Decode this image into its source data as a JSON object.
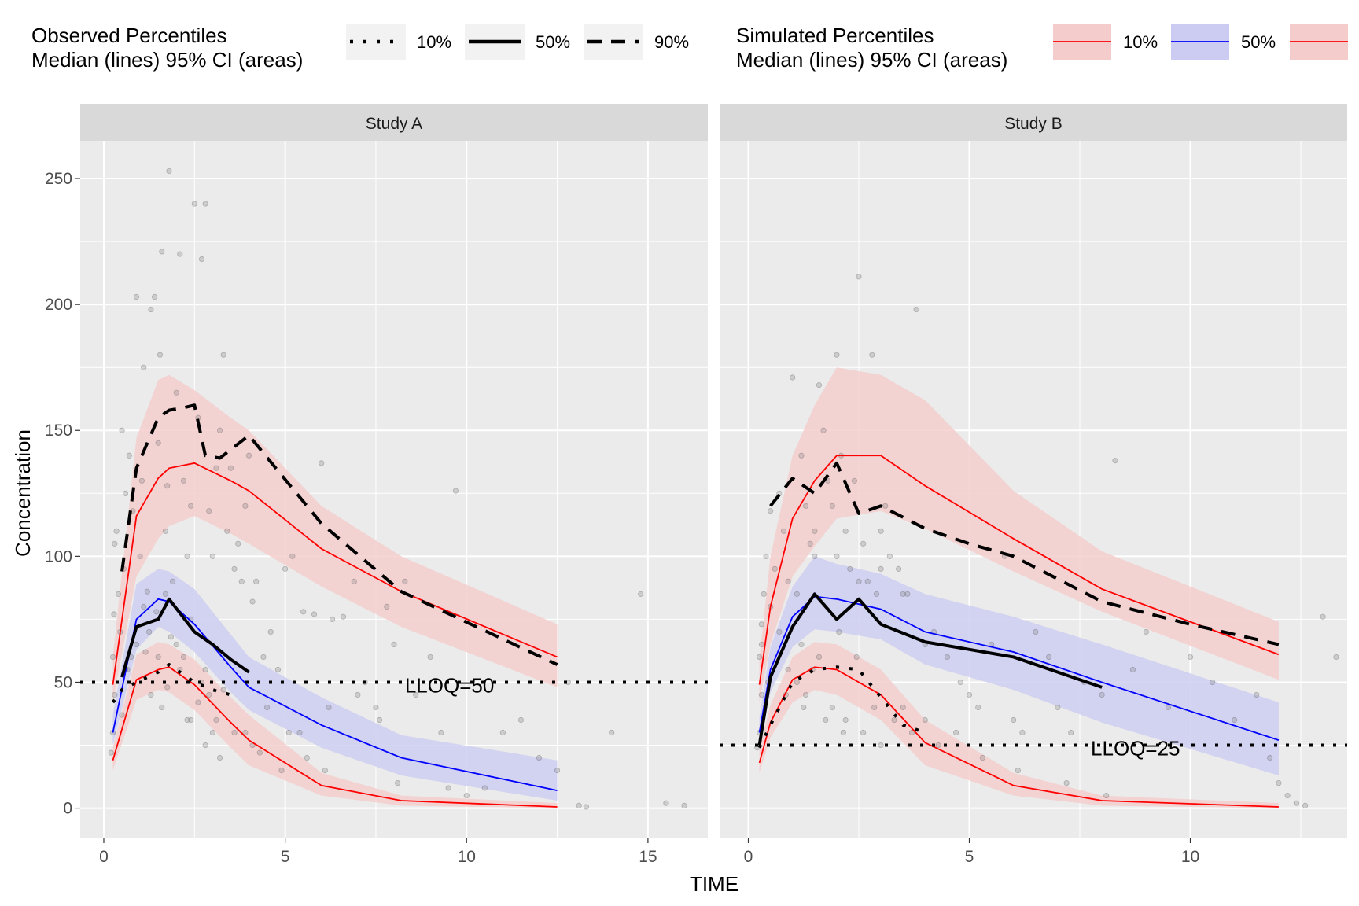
{
  "legend": {
    "observed": {
      "title_line1": "Observed Percentiles",
      "title_line2": "Median (lines) 95% CI (areas)",
      "items": [
        {
          "label": "10%",
          "linetype": "dotted"
        },
        {
          "label": "50%",
          "linetype": "solid"
        },
        {
          "label": "90%",
          "linetype": "dashed"
        }
      ]
    },
    "simulated": {
      "title_line1": "Simulated Percentiles",
      "title_line2": "Median (lines) 95% CI (areas)",
      "items": [
        {
          "label": "10%",
          "color": "#ff0000",
          "fill": "#f4cccc"
        },
        {
          "label": "50%",
          "color": "#0000ff",
          "fill": "#ccccf2"
        },
        {
          "label": "",
          "color": "#ff0000",
          "fill": "#f4cccc"
        }
      ]
    }
  },
  "colors": {
    "panel_bg": "#ebebeb",
    "grid": "#ffffff",
    "strip_bg": "#d9d9d9",
    "sim_outer_line": "#ff0000",
    "sim_outer_fill": "#f4cccc",
    "sim_median_line": "#0000ff",
    "sim_median_fill": "#ccccf2",
    "obs_line": "#000000",
    "point": "#7f7f7f"
  },
  "chart_data": [
    {
      "type": "line",
      "panel": "Study A",
      "xlabel": "TIME",
      "ylabel": "Concentration",
      "xlim": [
        -0.65,
        16.65
      ],
      "ylim": [
        -12,
        265
      ],
      "xticks": [
        0,
        5,
        10,
        15
      ],
      "yticks": [
        0,
        50,
        100,
        150,
        200,
        250
      ],
      "lloq": {
        "value": 50,
        "label": "LLOQ=50",
        "label_x": 8.3,
        "label_y": 46
      },
      "sim_bins": [
        0.25,
        0.9,
        1.5,
        1.8,
        2.5,
        3.5,
        4,
        6,
        8.2,
        12.5
      ],
      "sim_p10": {
        "median": [
          19,
          51,
          55,
          56,
          49,
          34,
          27,
          9,
          3,
          0.5
        ],
        "lo": [
          15,
          43,
          47,
          46,
          39,
          24,
          17,
          5,
          1,
          0
        ],
        "hi": [
          24,
          61,
          66,
          65,
          59,
          44,
          37,
          14,
          5,
          2
        ]
      },
      "sim_p50": {
        "median": [
          30,
          75,
          83,
          82,
          73,
          56,
          48,
          33,
          20,
          7
        ],
        "lo": [
          25,
          63,
          72,
          70,
          62,
          46,
          39,
          24,
          13,
          3
        ],
        "hi": [
          37,
          89,
          95,
          94,
          87,
          69,
          60,
          44,
          29,
          19
        ]
      },
      "sim_p90": {
        "median": [
          49,
          116,
          131,
          135,
          137,
          130,
          126,
          103,
          86,
          60
        ],
        "lo": [
          42,
          92,
          107,
          112,
          116,
          109,
          105,
          88,
          72,
          48
        ],
        "hi": [
          60,
          147,
          170,
          172,
          166,
          155,
          150,
          120,
          100,
          73
        ]
      },
      "obs_p10": {
        "x": [
          0.25,
          0.5,
          0.9,
          1.5,
          1.8,
          2.5,
          3,
          3.5
        ],
        "y": [
          42,
          47,
          50,
          54,
          57,
          50,
          47,
          45
        ]
      },
      "obs_p50": {
        "x": [
          0.5,
          0.9,
          1.5,
          1.8,
          2.5,
          3,
          3.5,
          4
        ],
        "y": [
          52,
          72,
          75,
          83,
          70,
          65,
          59,
          54
        ]
      },
      "obs_p90": {
        "x": [
          0.5,
          0.9,
          1.5,
          1.8,
          2.2,
          2.5,
          2.8,
          3.2,
          4,
          6,
          8.2,
          12.5
        ],
        "y": [
          94,
          135,
          155,
          158,
          159,
          160,
          140,
          139,
          148,
          113,
          86,
          57
        ]
      },
      "points": {
        "x": [
          0.2,
          0.25,
          0.3,
          0.25,
          0.28,
          0.3,
          0.35,
          0.4,
          0.45,
          0.5,
          0.55,
          0.6,
          0.7,
          0.8,
          0.9,
          1,
          1.05,
          1.1,
          1.2,
          1.3,
          1.4,
          1.5,
          1.55,
          1.6,
          1.7,
          1.75,
          1.8,
          1.9,
          2,
          2.1,
          2.2,
          2.3,
          2.4,
          2.5,
          2.6,
          2.7,
          2.8,
          2.9,
          3,
          3.1,
          3.2,
          3.3,
          3.4,
          3.5,
          3.6,
          3.7,
          3.8,
          3.9,
          4,
          4.1,
          4.2,
          4.4,
          4.6,
          4.8,
          5,
          5.2,
          5.5,
          5.8,
          6,
          6.3,
          6.6,
          6.9,
          7.2,
          7.5,
          7.8,
          8,
          8.3,
          8.6,
          9,
          9.3,
          9.7,
          10,
          10.5,
          11,
          11.5,
          12,
          12.5,
          12.8,
          13.1,
          13.3,
          14,
          14.8,
          15.5,
          16,
          0.9,
          1.1,
          1.3,
          1.6,
          1.85,
          2.1,
          2.4,
          2.7,
          3,
          3.3,
          0.6,
          0.75,
          1.25,
          1.45,
          2.2,
          2.6,
          3.1,
          3.6,
          4.1,
          4.5,
          5.1,
          5.6,
          6.1,
          0.5,
          0.65,
          1.15,
          1.75,
          2.3,
          2.8,
          3.2,
          3.9,
          4.3,
          4.9,
          5.4,
          6.2,
          7,
          7.6,
          8.1,
          9.5,
          1.5,
          2,
          2.4,
          2.8,
          1.7,
          2.9
        ],
        "y": [
          22,
          30,
          45,
          60,
          77,
          105,
          110,
          85,
          70,
          150,
          95,
          125,
          140,
          118,
          203,
          100,
          130,
          175,
          86,
          198,
          203,
          145,
          180,
          221,
          110,
          128,
          253,
          90,
          165,
          220,
          130,
          100,
          120,
          240,
          155,
          218,
          240,
          118,
          100,
          135,
          150,
          180,
          110,
          135,
          95,
          105,
          90,
          120,
          140,
          82,
          90,
          60,
          70,
          55,
          95,
          100,
          78,
          77,
          137,
          75,
          76,
          90,
          50,
          40,
          80,
          65,
          90,
          45,
          60,
          30,
          126,
          5,
          8,
          30,
          35,
          20,
          15,
          50,
          1,
          0.5,
          30,
          85,
          2,
          1,
          65,
          80,
          45,
          40,
          68,
          55,
          35,
          50,
          30,
          47,
          55,
          60,
          70,
          78,
          60,
          42,
          35,
          30,
          25,
          40,
          30,
          20,
          15,
          37,
          55,
          62,
          48,
          35,
          25,
          20,
          30,
          22,
          15,
          30,
          40,
          45,
          35,
          10,
          8,
          60,
          65,
          75,
          55,
          85,
          45
        ]
      }
    },
    {
      "type": "line",
      "panel": "Study B",
      "xlabel": "TIME",
      "ylabel": "Concentration",
      "xlim": [
        -0.65,
        13.55
      ],
      "ylim": [
        -12,
        265
      ],
      "xticks": [
        0,
        5,
        10
      ],
      "yticks": [
        0,
        50,
        100,
        150,
        200,
        250
      ],
      "lloq": {
        "value": 25,
        "label": "LLOQ=25",
        "label_x": 7.75,
        "label_y": 21
      },
      "sim_bins": [
        0.25,
        0.5,
        1,
        1.5,
        2,
        3,
        4,
        6,
        8,
        12
      ],
      "sim_p10": {
        "median": [
          18,
          34,
          51,
          56,
          55,
          45,
          26,
          9,
          3,
          0.5
        ],
        "lo": [
          14,
          28,
          42,
          47,
          45,
          35,
          17,
          5,
          1,
          0
        ],
        "hi": [
          23,
          41,
          60,
          66,
          65,
          55,
          35,
          14,
          5,
          2
        ]
      },
      "sim_p50": {
        "median": [
          30,
          55,
          76,
          84,
          83,
          79,
          70,
          62,
          50,
          27
        ],
        "lo": [
          24,
          46,
          64,
          71,
          70,
          67,
          57,
          47,
          34,
          13
        ],
        "hi": [
          36,
          64,
          88,
          100,
          97,
          93,
          85,
          76,
          65,
          42
        ]
      },
      "sim_p90": {
        "median": [
          49,
          80,
          115,
          130,
          140,
          140,
          128,
          107,
          87,
          61
        ],
        "lo": [
          42,
          65,
          92,
          104,
          115,
          118,
          111,
          94,
          78,
          51
        ],
        "hi": [
          59,
          100,
          140,
          160,
          175,
          172,
          162,
          126,
          102,
          74
        ]
      },
      "obs_p10": {
        "x": [
          0.25,
          0.5,
          1,
          1.5,
          2,
          2.5,
          3,
          3.5,
          4
        ],
        "y": [
          24,
          33,
          50,
          55,
          56,
          55,
          44,
          33,
          30
        ]
      },
      "obs_p50": {
        "x": [
          0.25,
          0.5,
          1,
          1.5,
          2,
          2.5,
          3,
          4,
          5,
          6,
          7,
          8
        ],
        "y": [
          25,
          52,
          72,
          85,
          75,
          83,
          73,
          66,
          63,
          60,
          54,
          48
        ]
      },
      "obs_p90": {
        "x": [
          0.5,
          1,
          1.5,
          2,
          2.5,
          3,
          4,
          5,
          6,
          8,
          10,
          12
        ],
        "y": [
          120,
          131,
          125,
          137,
          117,
          120,
          111,
          105,
          100,
          82,
          73,
          65
        ]
      },
      "points": {
        "x": [
          0.2,
          0.25,
          0.3,
          0.25,
          0.3,
          0.35,
          0.4,
          0.5,
          0.6,
          0.7,
          0.8,
          0.9,
          1,
          1.1,
          1.2,
          1.3,
          1.4,
          1.5,
          1.6,
          1.7,
          1.8,
          1.9,
          2,
          2.1,
          2.2,
          2.3,
          2.4,
          2.5,
          2.6,
          2.7,
          2.8,
          2.9,
          3,
          3.1,
          3.2,
          3.4,
          3.6,
          3.8,
          4,
          4.2,
          4.5,
          4.8,
          5,
          5.2,
          5.5,
          5.8,
          6,
          6.2,
          6.5,
          6.8,
          7,
          7.3,
          7.6,
          8,
          8.3,
          8.7,
          9,
          9.5,
          10,
          10.5,
          11,
          11.5,
          11.8,
          12,
          12.2,
          12.4,
          12.6,
          13,
          13.3,
          0.9,
          1.1,
          1.3,
          1.6,
          1.9,
          2.2,
          2.6,
          3,
          3.5,
          4,
          0.5,
          0.7,
          1.2,
          1.45,
          2.05,
          2.45,
          2.85,
          3.3,
          3.7,
          4.3,
          4.7,
          5.3,
          6.1,
          7.2,
          8.1,
          1.5,
          2,
          2.5,
          3,
          3.5,
          0.3,
          0.45,
          0.85,
          1.25,
          1.75,
          2.15
        ],
        "y": [
          24,
          30,
          45,
          60,
          73,
          85,
          100,
          118,
          95,
          125,
          110,
          90,
          171,
          85,
          140,
          120,
          105,
          100,
          168,
          150,
          130,
          120,
          180,
          140,
          110,
          95,
          130,
          211,
          105,
          90,
          180,
          85,
          110,
          120,
          100,
          95,
          85,
          198,
          65,
          70,
          60,
          50,
          45,
          40,
          65,
          100,
          35,
          30,
          70,
          60,
          40,
          30,
          50,
          45,
          138,
          55,
          70,
          40,
          60,
          50,
          35,
          45,
          20,
          10,
          5,
          2,
          1,
          76,
          60,
          55,
          50,
          45,
          60,
          40,
          35,
          30,
          25,
          40,
          35,
          80,
          70,
          65,
          55,
          70,
          60,
          40,
          35,
          30,
          25,
          30,
          20,
          15,
          10,
          5,
          110,
          100,
          90,
          95,
          85,
          65,
          50,
          45,
          40,
          35,
          30
        ]
      }
    }
  ]
}
